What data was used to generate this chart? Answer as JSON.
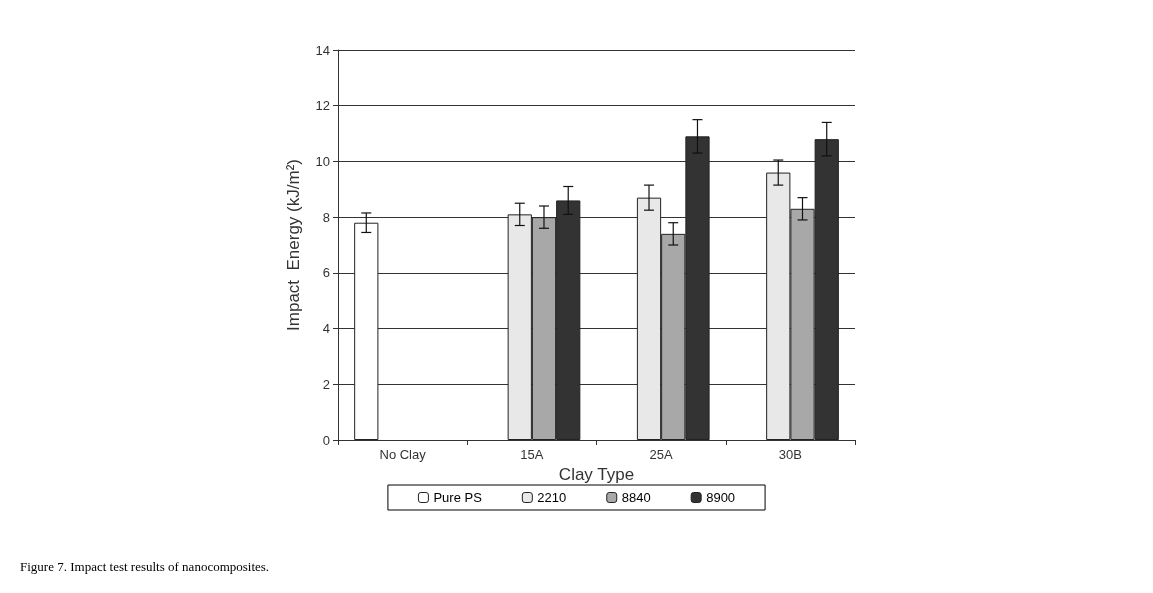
{
  "chart_data": {
    "type": "bar",
    "xlabel": "Clay Type",
    "ylabel": "Impact  Energy (kJ/m²)",
    "categories": [
      "No Clay",
      "15A",
      "25A",
      "30B"
    ],
    "series": [
      {
        "name": "Pure PS",
        "color": "#ffffff",
        "values": [
          7.8,
          null,
          null,
          null
        ],
        "errors": [
          0.35,
          null,
          null,
          null
        ]
      },
      {
        "name": "2210",
        "color": "#e8e8e8",
        "values": [
          null,
          8.1,
          8.7,
          9.6
        ],
        "errors": [
          null,
          0.4,
          0.45,
          0.45
        ]
      },
      {
        "name": "8840",
        "color": "#a8a8a8",
        "values": [
          null,
          8.0,
          7.4,
          8.3
        ],
        "errors": [
          null,
          0.4,
          0.4,
          0.4
        ]
      },
      {
        "name": "8900",
        "color": "#333333",
        "values": [
          null,
          8.6,
          10.9,
          10.8
        ],
        "errors": [
          null,
          0.5,
          0.6,
          0.6
        ]
      }
    ],
    "ylim": [
      0,
      14
    ],
    "yticks": [
      0,
      2,
      4,
      6,
      8,
      10,
      12,
      14
    ],
    "grid": "y",
    "legend": "bottom",
    "annotations": [
      "Figure 7. Impact test results of nanocomposites."
    ]
  }
}
